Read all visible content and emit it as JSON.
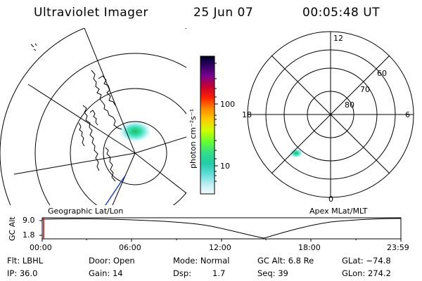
{
  "header": {
    "instrument": "Ultraviolet Imager",
    "date": "25 Jun 07",
    "time": "00:05:48 UT"
  },
  "maps": {
    "left_label": "Geographic Lat/Lon",
    "right_label": "Apex MLat/MLT",
    "mlt_labels": {
      "top": "12",
      "left": "18",
      "right": "6",
      "bottom": "0"
    },
    "mlat_labels": [
      "60",
      "70",
      "80"
    ]
  },
  "colorbar": {
    "unit_label": "photon cm⁻²s⁻¹",
    "ticks": [
      "100",
      "10"
    ],
    "colors": [
      "#000033",
      "#2a0060",
      "#6a0090",
      "#c00030",
      "#ff0000",
      "#ff6000",
      "#ff9900",
      "#ffcc00",
      "#ccff00",
      "#66ff33",
      "#33dd88",
      "#22ccaa",
      "#55dddd",
      "#aaeef0",
      "#e0f4f8",
      "#f4fafc"
    ]
  },
  "altitude_plot": {
    "ylabel": "GC Alt",
    "yticks": [
      "9.0",
      "1.8"
    ],
    "xticks": [
      "00:00",
      "06:00",
      "12:00",
      "18:00",
      "23:59"
    ]
  },
  "info": {
    "filter": "Flt: LBHL",
    "ip": "IP: 36.0",
    "door": "Door: Open",
    "gain": "Gain: 14",
    "mode": "Mode: Normal",
    "dsp_label": "Dsp:",
    "dsp_value": "1.7",
    "gc_alt": "GC Alt: 6.8 Re",
    "seq": "Seq: 39",
    "glat": "GLat: −74.8",
    "glon": "GLon: 274.2"
  }
}
